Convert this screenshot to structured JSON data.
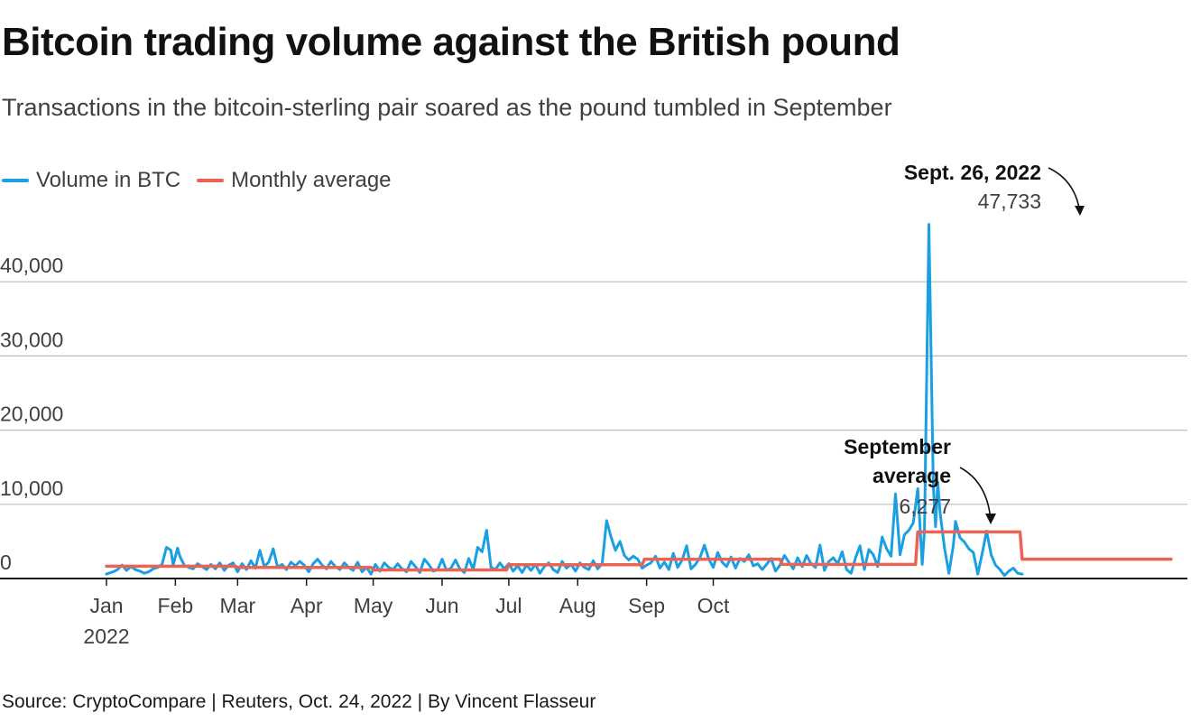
{
  "header": {
    "title": "Bitcoin trading volume against the British pound",
    "subtitle": "Transactions in the bitcoin-sterling pair soared as the pound tumbled in September"
  },
  "legend": {
    "items": [
      {
        "label": "Volume in BTC",
        "color": "#1a9fe3"
      },
      {
        "label": "Monthly average",
        "color": "#ec6356"
      }
    ]
  },
  "footer": {
    "source": "Source: CryptoCompare | Reuters, Oct. 24, 2022 | By Vincent Flasseur"
  },
  "annotations": {
    "peak": {
      "label": "Sept. 26, 2022",
      "value": "47,733"
    },
    "september": {
      "label_line1": "September",
      "label_line2": "average",
      "value": "6,277"
    }
  },
  "chart_data": {
    "type": "line",
    "title": "Bitcoin trading volume against the British pound",
    "xlabel": "",
    "ylabel": "",
    "ylim": [
      0,
      50000
    ],
    "yticks": [
      0,
      10000,
      20000,
      30000,
      40000
    ],
    "ytick_labels": [
      "0",
      "10,000",
      "20,000",
      "30,000",
      "40,000"
    ],
    "x_start": "2022-01-01",
    "x_end": "2022-10-23",
    "x_ticks": [
      {
        "day": 0,
        "label": "Jan",
        "sublabel": "2022"
      },
      {
        "day": 31,
        "label": "Feb",
        "sublabel": ""
      },
      {
        "day": 59,
        "label": "Mar",
        "sublabel": ""
      },
      {
        "day": 90,
        "label": "Apr",
        "sublabel": ""
      },
      {
        "day": 120,
        "label": "May",
        "sublabel": ""
      },
      {
        "day": 151,
        "label": "Jun",
        "sublabel": ""
      },
      {
        "day": 181,
        "label": "Jul",
        "sublabel": ""
      },
      {
        "day": 212,
        "label": "Aug",
        "sublabel": ""
      },
      {
        "day": 243,
        "label": "Sep",
        "sublabel": ""
      },
      {
        "day": 273,
        "label": "Oct",
        "sublabel": ""
      }
    ],
    "series": [
      {
        "name": "Volume in BTC",
        "color": "#1a9fe3",
        "points": [
          [
            0,
            600
          ],
          [
            3,
            900
          ],
          [
            5,
            1200
          ],
          [
            7,
            1800
          ],
          [
            9,
            1100
          ],
          [
            11,
            1600
          ],
          [
            13,
            1200
          ],
          [
            15,
            1000
          ],
          [
            17,
            700
          ],
          [
            19,
            900
          ],
          [
            21,
            1300
          ],
          [
            23,
            1500
          ],
          [
            25,
            1900
          ],
          [
            27,
            4200
          ],
          [
            29,
            3800
          ],
          [
            30,
            1800
          ],
          [
            32,
            4100
          ],
          [
            33,
            3000
          ],
          [
            35,
            1800
          ],
          [
            37,
            1500
          ],
          [
            39,
            1300
          ],
          [
            41,
            2000
          ],
          [
            43,
            1600
          ],
          [
            45,
            1200
          ],
          [
            47,
            1900
          ],
          [
            49,
            1300
          ],
          [
            51,
            2100
          ],
          [
            53,
            1100
          ],
          [
            55,
            1800
          ],
          [
            57,
            2100
          ],
          [
            59,
            900
          ],
          [
            61,
            2000
          ],
          [
            63,
            1200
          ],
          [
            65,
            2400
          ],
          [
            67,
            1400
          ],
          [
            69,
            3800
          ],
          [
            71,
            1600
          ],
          [
            73,
            2200
          ],
          [
            75,
            4000
          ],
          [
            77,
            1500
          ],
          [
            79,
            1900
          ],
          [
            81,
            1200
          ],
          [
            83,
            2200
          ],
          [
            85,
            1700
          ],
          [
            87,
            2300
          ],
          [
            89,
            1800
          ],
          [
            91,
            900
          ],
          [
            93,
            2000
          ],
          [
            95,
            2600
          ],
          [
            97,
            1800
          ],
          [
            99,
            1300
          ],
          [
            101,
            2300
          ],
          [
            103,
            1600
          ],
          [
            105,
            1200
          ],
          [
            107,
            2100
          ],
          [
            109,
            1500
          ],
          [
            111,
            1100
          ],
          [
            113,
            2200
          ],
          [
            115,
            900
          ],
          [
            117,
            1500
          ],
          [
            119,
            600
          ],
          [
            121,
            1900
          ],
          [
            123,
            1000
          ],
          [
            125,
            2100
          ],
          [
            127,
            1500
          ],
          [
            129,
            1200
          ],
          [
            131,
            2000
          ],
          [
            133,
            1300
          ],
          [
            135,
            900
          ],
          [
            137,
            2300
          ],
          [
            139,
            1600
          ],
          [
            141,
            800
          ],
          [
            143,
            2600
          ],
          [
            145,
            1900
          ],
          [
            147,
            1000
          ],
          [
            149,
            1200
          ],
          [
            151,
            2600
          ],
          [
            153,
            1100
          ],
          [
            155,
            1400
          ],
          [
            157,
            2500
          ],
          [
            159,
            1300
          ],
          [
            161,
            800
          ],
          [
            163,
            2700
          ],
          [
            165,
            1200
          ],
          [
            167,
            4200
          ],
          [
            169,
            3600
          ],
          [
            171,
            6500
          ],
          [
            173,
            1500
          ],
          [
            175,
            1200
          ],
          [
            177,
            2100
          ],
          [
            179,
            1300
          ],
          [
            181,
            2000
          ],
          [
            183,
            1000
          ],
          [
            185,
            1700
          ],
          [
            187,
            800
          ],
          [
            189,
            1800
          ],
          [
            191,
            1100
          ],
          [
            193,
            1900
          ],
          [
            195,
            700
          ],
          [
            197,
            1600
          ],
          [
            199,
            2100
          ],
          [
            201,
            1200
          ],
          [
            203,
            800
          ],
          [
            205,
            2300
          ],
          [
            207,
            1400
          ],
          [
            209,
            1900
          ],
          [
            211,
            1000
          ],
          [
            213,
            2100
          ],
          [
            215,
            1500
          ],
          [
            217,
            1200
          ],
          [
            219,
            2400
          ],
          [
            221,
            1300
          ],
          [
            223,
            2000
          ],
          [
            225,
            7800
          ],
          [
            227,
            5600
          ],
          [
            229,
            3800
          ],
          [
            231,
            5000
          ],
          [
            233,
            3100
          ],
          [
            235,
            2500
          ],
          [
            237,
            3000
          ],
          [
            239,
            2600
          ],
          [
            241,
            1400
          ],
          [
            243,
            1800
          ],
          [
            245,
            2100
          ],
          [
            247,
            3000
          ],
          [
            249,
            1400
          ],
          [
            251,
            2200
          ],
          [
            253,
            1200
          ],
          [
            255,
            3400
          ],
          [
            257,
            1500
          ],
          [
            259,
            2500
          ],
          [
            261,
            4400
          ],
          [
            263,
            1300
          ],
          [
            265,
            1900
          ],
          [
            267,
            2800
          ],
          [
            269,
            4500
          ],
          [
            271,
            2600
          ],
          [
            273,
            1500
          ],
          [
            275,
            3500
          ],
          [
            277,
            2200
          ],
          [
            279,
            1600
          ],
          [
            281,
            2900
          ],
          [
            283,
            1400
          ],
          [
            285,
            2700
          ],
          [
            287,
            2300
          ],
          [
            289,
            3200
          ],
          [
            291,
            1700
          ],
          [
            293,
            2000
          ],
          [
            295,
            1200
          ],
          [
            297,
            1900
          ],
          [
            299,
            2700
          ],
          [
            301,
            1000
          ],
          [
            303,
            1800
          ],
          [
            305,
            3100
          ],
          [
            307,
            2200
          ],
          [
            309,
            1300
          ],
          [
            311,
            2800
          ],
          [
            313,
            1600
          ],
          [
            315,
            3100
          ],
          [
            317,
            2000
          ],
          [
            319,
            1500
          ],
          [
            321,
            4500
          ],
          [
            323,
            1100
          ],
          [
            325,
            2300
          ],
          [
            327,
            2800
          ],
          [
            329,
            2000
          ],
          [
            331,
            3600
          ],
          [
            333,
            1200
          ],
          [
            335,
            700
          ],
          [
            337,
            2800
          ],
          [
            339,
            4400
          ],
          [
            341,
            1200
          ],
          [
            343,
            3900
          ],
          [
            345,
            3200
          ],
          [
            347,
            1600
          ],
          [
            349,
            5600
          ],
          [
            351,
            4000
          ],
          [
            353,
            3000
          ],
          [
            355,
            11400
          ],
          [
            357,
            3200
          ],
          [
            359,
            5900
          ],
          [
            361,
            6500
          ],
          [
            363,
            7500
          ],
          [
            365,
            12100
          ],
          [
            367,
            1900
          ],
          [
            368,
            6500
          ],
          [
            370,
            47733
          ],
          [
            372,
            12500
          ],
          [
            373,
            7000
          ],
          [
            374,
            13000
          ],
          [
            375,
            9000
          ],
          [
            377,
            4200
          ],
          [
            379,
            700
          ],
          [
            381,
            4500
          ],
          [
            382,
            7700
          ],
          [
            384,
            5500
          ],
          [
            386,
            4900
          ],
          [
            388,
            4000
          ],
          [
            390,
            3500
          ],
          [
            392,
            600
          ],
          [
            394,
            3400
          ],
          [
            396,
            6400
          ],
          [
            398,
            3200
          ],
          [
            400,
            1800
          ],
          [
            402,
            1200
          ],
          [
            404,
            400
          ],
          [
            406,
            1000
          ],
          [
            408,
            1400
          ],
          [
            410,
            700
          ],
          [
            412,
            600
          ]
        ]
      },
      {
        "name": "Monthly average",
        "color": "#ec6356",
        "steps": [
          {
            "from": 0,
            "to": 58,
            "value": 1650
          },
          {
            "from": 59,
            "to": 119,
            "value": 1500
          },
          {
            "from": 120,
            "to": 180,
            "value": 1150
          },
          {
            "from": 181,
            "to": 241,
            "value": 1850
          },
          {
            "from": 242,
            "to": 303,
            "value": 2600
          },
          {
            "from": 304,
            "to": 364,
            "value": 1900
          },
          {
            "from": 365,
            "to": 411,
            "value": 6277
          },
          {
            "from": 412,
            "to": 479,
            "value": 2600
          }
        ]
      }
    ]
  }
}
